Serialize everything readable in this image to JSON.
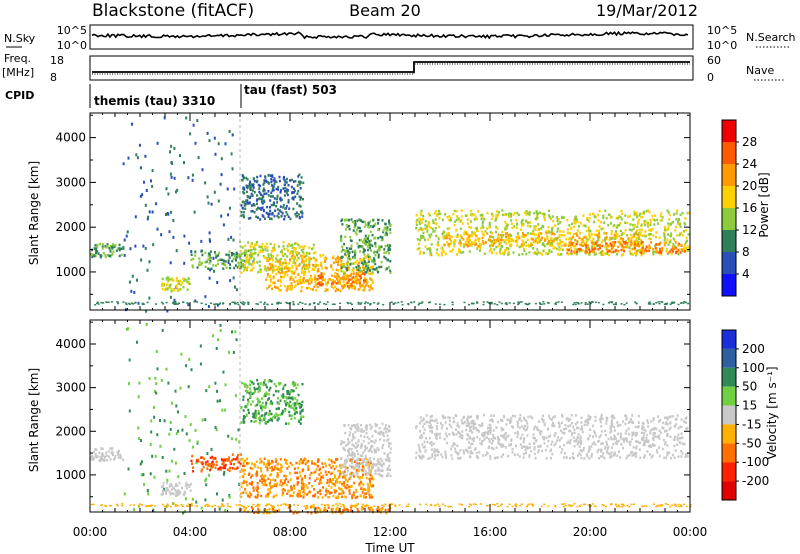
{
  "header": {
    "station": "Blackstone (fitACF)",
    "beam": "Beam 20",
    "date": "19/Mar/2012"
  },
  "top_panels": {
    "nsky_label": "N.Sky",
    "nsky_ticks": [
      "10^5",
      "10^0"
    ],
    "nsearch_label": "N.Search",
    "nsearch_ticks": [
      "10^5",
      "10^0"
    ],
    "freq_label": "Freq.",
    "freq_unit": "[MHz]",
    "freq_ticks": [
      "18",
      "8"
    ],
    "nave_label": "Nave",
    "nave_ticks": [
      "60",
      "0"
    ],
    "cpid_label": "CPID",
    "cpid_segments": [
      {
        "label": "themis (tau) 3310",
        "start_hour": 0.0
      },
      {
        "label": "tau (fast) 503",
        "start_hour": 6.0
      }
    ]
  },
  "x_axis": {
    "label": "Time UT",
    "ticks": [
      "00:00",
      "04:00",
      "08:00",
      "12:00",
      "16:00",
      "20:00",
      "00:00"
    ],
    "tick_hours": [
      0,
      4,
      8,
      12,
      16,
      20,
      24
    ]
  },
  "chart_data": [
    {
      "type": "heatmap",
      "name": "power",
      "ylabel": "Slant Range [km]",
      "yticks": [
        "1000",
        "2000",
        "3000",
        "4000"
      ],
      "ylim": [
        150,
        4550
      ],
      "xlim_hours": [
        0,
        24
      ],
      "colorbar_label": "Power [dB]",
      "colorbar_ticks": [
        "4",
        "8",
        "12",
        "16",
        "20",
        "24",
        "28"
      ],
      "colorbar_colors": [
        "#1010ff",
        "#2a4fb8",
        "#2f7f5a",
        "#8ccc3a",
        "#ffd000",
        "#ff9a00",
        "#ff5a00",
        "#ee0000"
      ],
      "scatter_regions": [
        {
          "t": [
            0.0,
            1.3
          ],
          "r": [
            1350,
            1650
          ],
          "v": 12
        },
        {
          "t": [
            1.3,
            6.0
          ],
          "r": [
            150,
            4500
          ],
          "v": 8
        },
        {
          "t": [
            2.8,
            4.0
          ],
          "r": [
            600,
            900
          ],
          "v": 16
        },
        {
          "t": [
            4.0,
            6.5
          ],
          "r": [
            1100,
            1500
          ],
          "v": 12
        },
        {
          "t": [
            5.9,
            9.0
          ],
          "r": [
            1000,
            1700
          ],
          "v": 16
        },
        {
          "t": [
            7.0,
            11.3
          ],
          "r": [
            600,
            1400
          ],
          "v": 20
        },
        {
          "t": [
            9.0,
            11.0
          ],
          "r": [
            700,
            1000
          ],
          "v": 24
        },
        {
          "t": [
            6.0,
            8.5
          ],
          "r": [
            2200,
            3200
          ],
          "v": 8
        },
        {
          "t": [
            10.0,
            12.0
          ],
          "r": [
            1000,
            2200
          ],
          "v": 12
        },
        {
          "t": [
            13.0,
            23.9
          ],
          "r": [
            1400,
            2400
          ],
          "v": 16
        },
        {
          "t": [
            14.0,
            22.0
          ],
          "r": [
            1600,
            1900
          ],
          "v": 20
        },
        {
          "t": [
            19.0,
            23.8
          ],
          "r": [
            1450,
            1700
          ],
          "v": 24
        }
      ]
    },
    {
      "type": "heatmap",
      "name": "velocity",
      "ylabel": "Slant Range [km]",
      "yticks": [
        "1000",
        "2000",
        "3000",
        "4000"
      ],
      "ylim": [
        150,
        4550
      ],
      "xlim_hours": [
        0,
        24
      ],
      "colorbar_label": "Velocity [m s⁻¹]",
      "colorbar_ticks": [
        "200",
        "100",
        "50",
        "15",
        "-15",
        "-50",
        "-100",
        "-200"
      ],
      "colorbar_colors": [
        "#1a2fd8",
        "#2e5fa0",
        "#2f8a55",
        "#6fd040",
        "#c8c8c8",
        "#ffb000",
        "#ff7000",
        "#ff2000",
        "#e00000"
      ],
      "scatter_regions": [
        {
          "t": [
            0.0,
            1.3
          ],
          "r": [
            1350,
            1650
          ],
          "v": 0
        },
        {
          "t": [
            1.3,
            6.0
          ],
          "r": [
            150,
            4500
          ],
          "v": 30
        },
        {
          "t": [
            2.8,
            4.0
          ],
          "r": [
            550,
            850
          ],
          "v": 0
        },
        {
          "t": [
            4.0,
            6.0
          ],
          "r": [
            1100,
            1500
          ],
          "v": -100
        },
        {
          "t": [
            6.0,
            11.3
          ],
          "r": [
            500,
            1400
          ],
          "v": -50
        },
        {
          "t": [
            6.0,
            12.0
          ],
          "r": [
            150,
            300
          ],
          "v": -50
        },
        {
          "t": [
            6.0,
            8.5
          ],
          "r": [
            2200,
            3200
          ],
          "v": 30
        },
        {
          "t": [
            10.0,
            12.0
          ],
          "r": [
            1000,
            2200
          ],
          "v": 0
        },
        {
          "t": [
            13.0,
            23.9
          ],
          "r": [
            1400,
            2400
          ],
          "v": 0
        }
      ]
    }
  ]
}
